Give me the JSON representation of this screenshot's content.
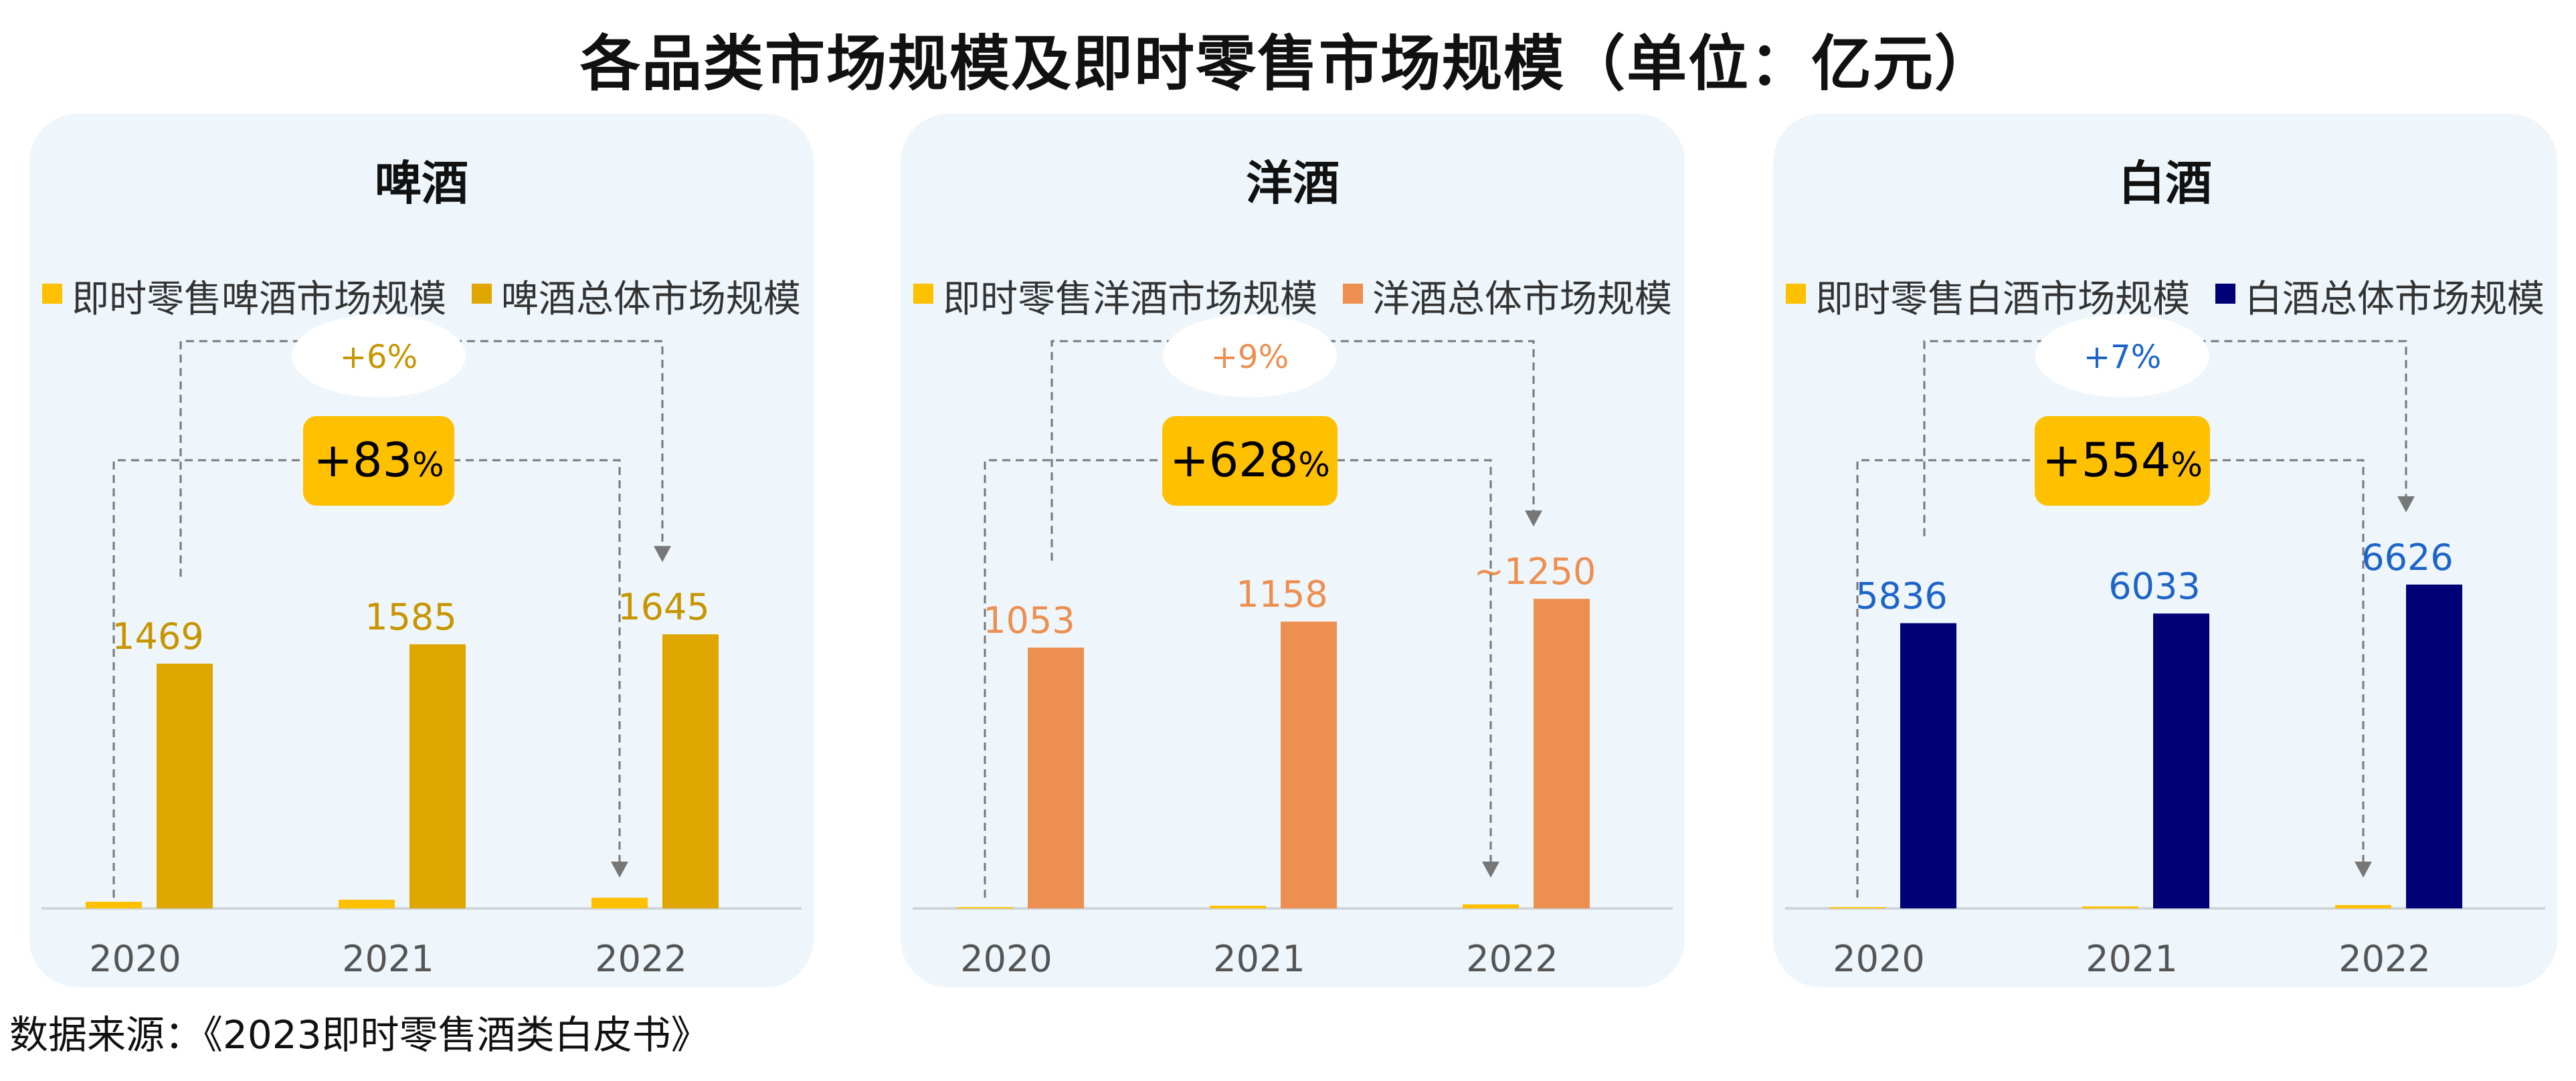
{
  "title": "各品类市场规模及即时零售市场规模（单位：亿元）",
  "source": "数据来源：《2023即时零售酒类白皮书》",
  "colors": {
    "instant_retail": "#ffc000",
    "panel_bg": "#eef6fb",
    "axis": "#cfd5da",
    "connector": "#777777",
    "category_label": "#555555"
  },
  "chart_data": [
    {
      "type": "bar",
      "title": "啤酒",
      "categories": [
        "2020",
        "2021",
        "2022"
      ],
      "series": [
        {
          "name": "即时零售啤酒市场规模",
          "color": "#ffc000",
          "values": [
            25,
            51,
            75
          ]
        },
        {
          "name": "啤酒总体市场规模",
          "color": "#dfa600",
          "values": [
            1469,
            1585,
            1645
          ]
        }
      ],
      "data_labels": [
        "1469",
        "1585",
        "1645"
      ],
      "label_color": "#c79500",
      "growth_total": {
        "sign": "+",
        "num": "6",
        "pct": "%"
      },
      "growth_instant": {
        "sign": "+",
        "num": "83",
        "pct": "%"
      },
      "ylim": [
        0,
        2200
      ]
    },
    {
      "type": "bar",
      "title": "洋酒",
      "categories": [
        "2020",
        "2021",
        "2022"
      ],
      "series": [
        {
          "name": "即时零售洋酒市场规模",
          "color": "#ffc000",
          "values": [
            3,
            12,
            24
          ]
        },
        {
          "name": "洋酒总体市场规模",
          "color": "#ed8f50",
          "values": [
            1053,
            1158,
            1250
          ]
        }
      ],
      "data_labels": [
        "1053",
        "1158",
        "~1250"
      ],
      "label_color": "#ed8f50",
      "growth_total": {
        "sign": "+",
        "num": "9",
        "pct": "%"
      },
      "growth_instant": {
        "sign": "+",
        "num": "628",
        "pct": "%"
      },
      "ylim": [
        0,
        1480
      ]
    },
    {
      "type": "bar",
      "title": "白酒",
      "categories": [
        "2020",
        "2021",
        "2022"
      ],
      "series": [
        {
          "name": "即时零售白酒市场规模",
          "color": "#ffc000",
          "values": [
            2,
            7,
            13
          ]
        },
        {
          "name": "白酒总体市场规模",
          "color": "#000077",
          "values": [
            5836,
            6033,
            6626
          ]
        }
      ],
      "data_labels": [
        "5836",
        "6033",
        "6626"
      ],
      "label_color": "#1e64c8",
      "growth_total": {
        "sign": "+",
        "num": "7",
        "pct": "%"
      },
      "growth_instant": {
        "sign": "+",
        "num": "554",
        "pct": "%"
      },
      "ylim": [
        0,
        7500
      ]
    }
  ]
}
